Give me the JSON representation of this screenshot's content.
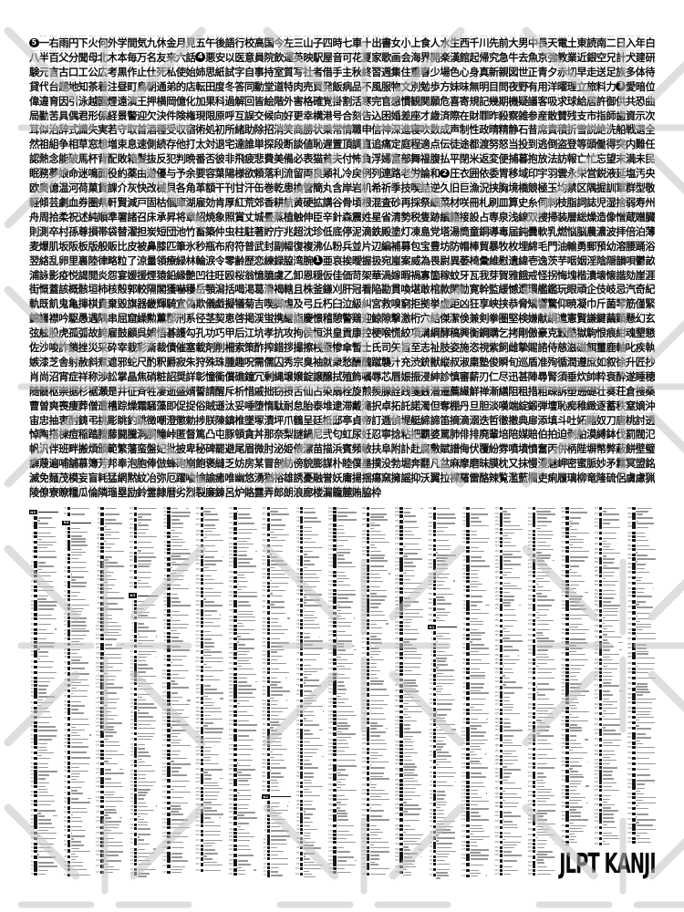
{
  "poster": {
    "logo_text": "JLPT KANJI",
    "colors": {
      "text": "#0e0e0e",
      "watermark": "#c4c4c4",
      "annotation": "#9b9b9b",
      "index_meta": "#757575"
    },
    "levels": [
      {
        "name": "N5",
        "marker_digit": "5",
        "kanji": "一右雨円下火何外学間気九休金月見五午後語行校高国今左三山子四時七車十出書女小上食人水生西千川先前大男中長天電土東読南二日入年白八半百父分聞母北木本毎万名友来六話"
      },
      {
        "name": "N4",
        "marker_digit": "4",
        "kanji": "悪安以医意員院飲運英映駅屋音可花夏家歌画会海界開楽漢館起帰究急牛去魚京強教業近銀空兄計犬建研験元言古口工公広考黒作止仕死私使始姉思紙試字自事持室質写社者借手主秋終習週集住重春少場色心身真新親図世正青夕赤切早走送足族多体待貸代台題地知茶着注昼町鳥朝通弟的店転田度冬答同動堂道特肉売買発飯病品不風服物文別勉歩方妹味無明目問夜野有用洋曜理立旅料力"
      },
      {
        "name": "N3",
        "marker_digit": "3",
        "kanji": "愛暗位偉違育因引泳越園煙遠演王押横岡億化加果科過解回皆絵階外害格確覚掛割活寒完官感慣観関願危喜寄規記幾期機疑議客吸求球給居許御供共恐曲局勤苦具偶君形係経景警迎欠決件険権現限原呼互誤交候向好更幸構港号合刻告込困婚差座才歳済際在財罪昨殺察雑参産散賛残支市指師歯資示次耳似治辞式識失実若守取首酒種受収宿術処初所緒助除招消笑商勝状乗常情職申信神深進寝吹数成声制性政晴精静石昔席責積折雪説絶洗船戦選全然祖組争相草窓想増束息速側続存他打太対退宅達誰単探段断談値恥遅置頂調直追痛定庭程適点伝徒途都渡努怒当投到逃倒盗登等頭働得突内難任認熱念能破馬杯背配敗箱髪抜反犯判晩番否彼非飛疲悲費美備必表猫貧夫付怖負浮婦富部舞福腹払平閉米返変便捕暮抱放法訪報亡忙忘望末満未民眠務夢娘命迷鳴面役約薬由遊優与予余要容葉陽様欲頼落利流留両良類礼冷戻例列連路老労論和"
      },
      {
        "name": "N2",
        "marker_digit": "2",
        "kanji": "圧衣囲依委胃移域印宇羽雲永栄営鋭液延塩汚央欧奥億温河荷菓貨課介灰快改械貝各角革額干刊甘汗缶巻乾患換管簡丸含岸岩机希祈季技喫詰逆久旧巨漁況挟胸境橋競極玉均禁区隅掘訓軍群型敬軽傾芸劇血券圏県軒賢減戸固枯個庫湖雇効肯厚紅荒郊香耕航黄硬拡講谷骨頃根混査砂再採祭細菜材咲冊札刷皿算史糸伺刺枝脂詞誌児湿捨弱寿州舟周拾柔祝述純順準署諸召床承昇将章紹焼象照賞丈城畳蒸植触伸臣辛針森震姓星省清勢税隻跡績籍接設占専泉浅線双捜掃装層総燥造像憎蔵贈臓則測卒村孫尊損帯袋替濯担炭短団池竹畜築仲虫柱駐著貯庁兆超沈珍低底停泥滴鉄殿塗灯凍島党塔湯筒童銅導毒届鈍曇軟乳燃悩脳農濃波拝倍泊薄麦爆肌坂阪板版般販比皮被鼻膝匹筆氷秒瓶布府符普武封副幅復複沸仏粉兵並片辺編補募包宝豊坊防帽棒貿暴牧枚埋綿毛門油輸勇郵預幼溶腰踊浴翌絡乱卵里裏陸律略粒了涼量領療緑林輪涙令零齢歴恋練録脇湾腕"
      },
      {
        "name": "N1",
        "marker_digit": "1",
        "kanji": "亜哀挨曖握扱宛嵐案威為畏尉異萎椅彙維慰遺緯壱逸茨芋咽姻淫陰隠韻唄鬱畝浦詠影疫悦謁閲炎怨宴媛援煙猿鉛縁艶凹往旺殴桜翁憶臆虞乙卸恩穏仮佳価苛架華渦嫁暇禍寡箇稼蚊牙瓦我芽賀雅餓戒怪拐悔塊楷潰壊懐諧劾崖涯街慨蓋該概骸垣柿核殻郭較隔閣獲嚇穫岳顎潟括喝渇葛滑褐轄且株釜鎌刈肝冠看陥勘貫喚堪敢棺款閑勧寛幹監緩憾還環艦鑑玩眼頑企伎岐忌汽奇紀軌既飢鬼亀揮棋貴棄毀旗器畿輝騎宜偽欺儀戯擬犠菊吉喫脚虐及弓丘朽臼泣級糾宮救嗅窮拒拠挙虚距凶狂享峡挟恭脅矯響驚仰暁凝巾斤菌琴筋僅緊錦謹襟吟駆愚遇隅串屈窟繰勲薫郡刑系径茎契恵啓掲渓蛍携継詣慶憬稽憩警鶏迎鯨隙撃激桁穴結傑潔倹兼剣拳圏堅検嫌献絹遣憲賢謙鍵繭顕懸幻玄弦舷股虎孤弧故誇雇鼓顧呉娯悟碁護勾孔功巧甲后江坑孝抗攻拘侯恒洪皇貢康控梗喉慌絞項溝綱酵稿興衡鋼購乞拷剛傲豪克穀酷獄駒恨痕紺魂墾懇佐沙唆詐鎖挫災采砕宰栽彩斎裁債催塞載剤削柵索策酢搾錯拶撮擦桟蚕惨傘暫士氏司矢旨至志祉肢姿施恣視紫飼雌摯賜諮侍慈滋磁餌璽鹿軸叱疾執嫉漆芝舎射赦斜煮遮邪蛇尺酌釈爵寂朱狩殊珠腫趣呪需儒囚秀宗臭袖就衆愁酬醜蹴襲汁充渋銃獣縦叔淑粛塾俊瞬旬巡盾准殉循潤遵庶如叙徐升匠抄肖尚沼宵症祥称渉訟掌晶焦硝粧詔奨詳彰憧衝償礁鐘冗剰縄壌嬢錠譲醸拭殖飾嘱辱芯唇娠振浸紳診慎審薪刃仁尽迅甚陣尋腎須垂炊帥粋衰酔遂睡穂随髄枢崇据杉裾瀬是井征斉牲凄逝盛婿誓請醒斥析惜戚拙窃摂舌仙占染扇栓旋煎羨腺詮践箋銭潜遷薦繊鮮禅漸繕阻租措粗疎訴塑遡礎壮奏荘倉捜桑曹曽爽喪痩葬僧遭槽踪燥霜騒藻即促捉俗賊遜汰妥唾堕惰駄耐怠胎泰堆逮滞戴滝択卓拓託諾濁但奪棚丹旦胆淡嘆端綻鍛弾壇恥痴稚緻逐蓄秩窒嫡沖宙忠抽衷酎鋳弔挑彫眺釣跳徴嘲澄懲勅捗朕陳鎮椎墜塚漬坪爪鶴呈廷抵邸亭貞帝訂逓偵堤艇締諦笛摘滴溺迭哲徹撤典扉添填斗吐妬賭奴刀唐桃討透悼陶搭棟痘稲踏謄藤闘騰洞胴瞳峠匿督篤凸屯豚頓貪丼那奈梨謎鍋尼弐匂虹尿妊忍寧捻粘把覇婆罵肺俳排廃輩培陪媒賠伯拍迫剥舶漠縛鉢伐罰閥氾帆汎伴班畔搬煩頒範繁藩蛮盤妃批披卑秘碑罷避尾眉微肘泌姫俵漂苗描浜賓頻敏扶阜附訃赴腐敷賦譜侮伏覆紛雰噴墳憤奮丙併柄陛塀幣弊蔽餅壁璧癖蔑遍哺舗慕簿芳邦奉泡胞俸倣蜂砲崩飽褒縫乏妨房某冒剖紡傍貌膨謀朴睦僕墨撲没勃堀奔翻凡盆麻摩磨昧膜枕又抹慢漫魅岬密蜜脈妙矛霧冥盟銘滅免麺茂模妄盲耗猛網黙紋冶弥厄躍喩愉諭癒唯幽悠湧猶裕雄誘憂融誉妖庸揚揺瘍窯擁謡抑沃翼拉裸羅雷酪辣覧濫藍欄吏痢履璃柳竜隆硫侶虜慮猟陵僚寮瞭糧瓜倫隣瑠塁励鈴霊隷暦劣烈裂廉錬呂炉賂露弄郎朗浪廊楼漏籠麓賄脇枠"
      }
    ],
    "index_section_labels": [
      "N5",
      "N4",
      "N3",
      "N2",
      "N1"
    ]
  }
}
